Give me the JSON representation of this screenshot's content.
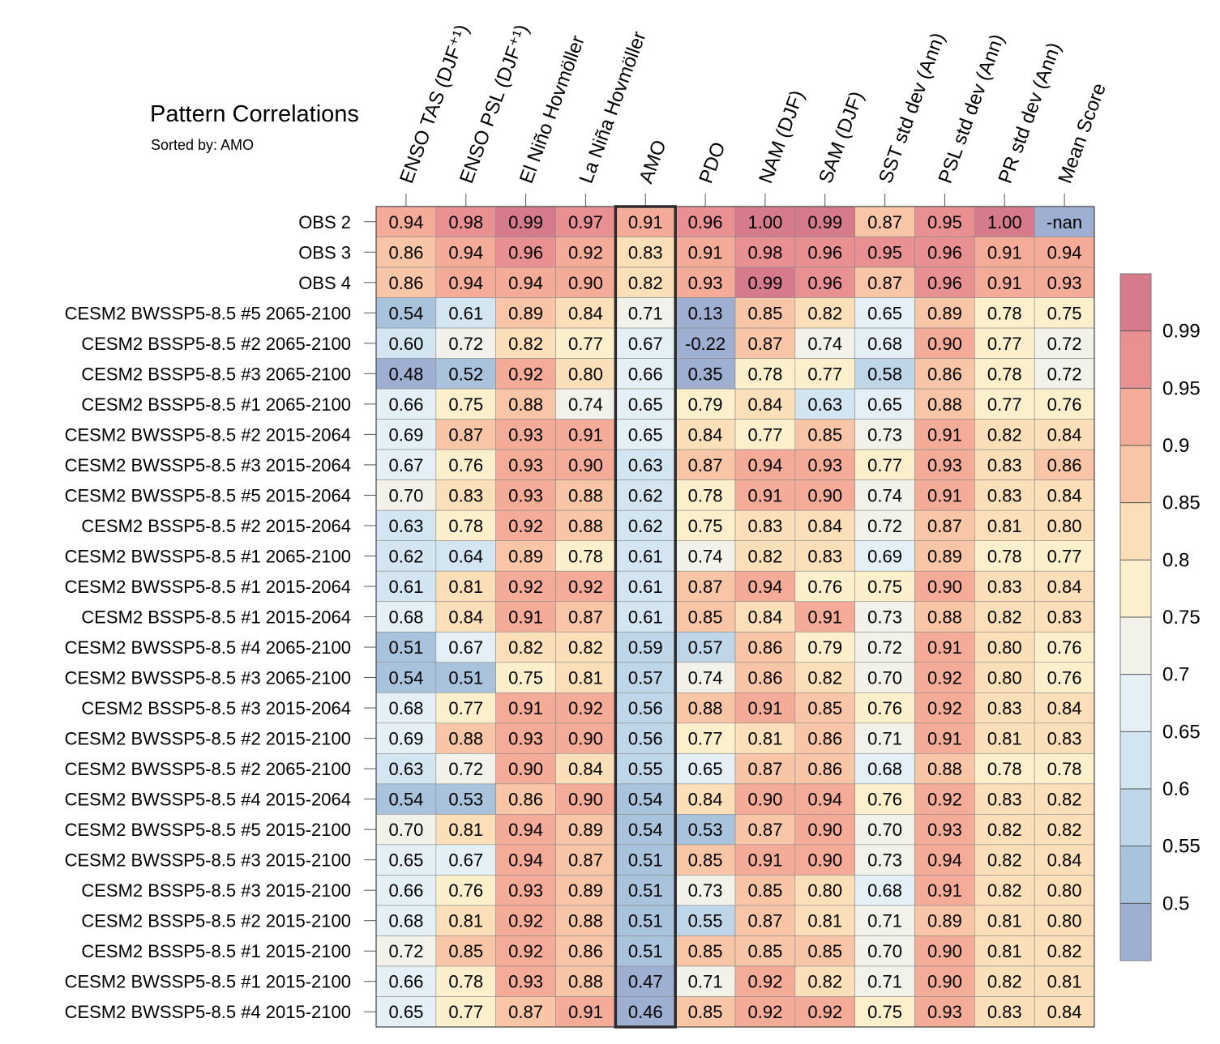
{
  "header": {
    "title": "Pattern Correlations",
    "subtitle": "Sorted by: AMO"
  },
  "chart_data": {
    "type": "heatmap",
    "title": "Pattern Correlations",
    "subtitle": "Sorted by: AMO",
    "highlighted_column": "AMO",
    "columns": [
      "ENSO TAS (DJF⁺¹)",
      "ENSO PSL (DJF⁺¹)",
      "El Niño Hovmöller",
      "La Niña Hovmöller",
      "AMO",
      "PDO",
      "NAM (DJF)",
      "SAM (DJF)",
      "SST std dev (Ann)",
      "PSL std dev (Ann)",
      "PR std dev (Ann)",
      "Mean Score"
    ],
    "rows": [
      {
        "name": "OBS 2",
        "values": [
          "0.94",
          "0.98",
          "0.99",
          "0.97",
          "0.91",
          "0.96",
          "1.00",
          "0.99",
          "0.87",
          "0.95",
          "1.00",
          "-nan"
        ]
      },
      {
        "name": "OBS 3",
        "values": [
          "0.86",
          "0.94",
          "0.96",
          "0.92",
          "0.83",
          "0.91",
          "0.98",
          "0.96",
          "0.95",
          "0.96",
          "0.91",
          "0.94"
        ]
      },
      {
        "name": "OBS 4",
        "values": [
          "0.86",
          "0.94",
          "0.94",
          "0.90",
          "0.82",
          "0.93",
          "0.99",
          "0.96",
          "0.87",
          "0.96",
          "0.91",
          "0.93"
        ]
      },
      {
        "name": "CESM2 BWSSP5-8.5 #5 2065-2100",
        "values": [
          "0.54",
          "0.61",
          "0.89",
          "0.84",
          "0.71",
          "0.13",
          "0.85",
          "0.82",
          "0.65",
          "0.89",
          "0.78",
          "0.75"
        ]
      },
      {
        "name": "CESM2 BSSP5-8.5 #2 2065-2100",
        "values": [
          "0.60",
          "0.72",
          "0.82",
          "0.77",
          "0.67",
          "-0.22",
          "0.87",
          "0.74",
          "0.68",
          "0.90",
          "0.77",
          "0.72"
        ]
      },
      {
        "name": "CESM2 BSSP5-8.5 #3 2065-2100",
        "values": [
          "0.48",
          "0.52",
          "0.92",
          "0.80",
          "0.66",
          "0.35",
          "0.78",
          "0.77",
          "0.58",
          "0.86",
          "0.78",
          "0.72"
        ]
      },
      {
        "name": "CESM2 BSSP5-8.5 #1 2065-2100",
        "values": [
          "0.66",
          "0.75",
          "0.88",
          "0.74",
          "0.65",
          "0.79",
          "0.84",
          "0.63",
          "0.65",
          "0.88",
          "0.77",
          "0.76"
        ]
      },
      {
        "name": "CESM2 BWSSP5-8.5 #2 2015-2064",
        "values": [
          "0.69",
          "0.87",
          "0.93",
          "0.91",
          "0.65",
          "0.84",
          "0.77",
          "0.85",
          "0.73",
          "0.91",
          "0.82",
          "0.84"
        ]
      },
      {
        "name": "CESM2 BWSSP5-8.5 #3 2015-2064",
        "values": [
          "0.67",
          "0.76",
          "0.93",
          "0.90",
          "0.63",
          "0.87",
          "0.94",
          "0.93",
          "0.77",
          "0.93",
          "0.83",
          "0.86"
        ]
      },
      {
        "name": "CESM2 BWSSP5-8.5 #5 2015-2064",
        "values": [
          "0.70",
          "0.83",
          "0.93",
          "0.88",
          "0.62",
          "0.78",
          "0.91",
          "0.90",
          "0.74",
          "0.91",
          "0.83",
          "0.84"
        ]
      },
      {
        "name": "CESM2 BSSP5-8.5 #2 2015-2064",
        "values": [
          "0.63",
          "0.78",
          "0.92",
          "0.88",
          "0.62",
          "0.75",
          "0.83",
          "0.84",
          "0.72",
          "0.87",
          "0.81",
          "0.80"
        ]
      },
      {
        "name": "CESM2 BWSSP5-8.5 #1 2065-2100",
        "values": [
          "0.62",
          "0.64",
          "0.89",
          "0.78",
          "0.61",
          "0.74",
          "0.82",
          "0.83",
          "0.69",
          "0.89",
          "0.78",
          "0.77"
        ]
      },
      {
        "name": "CESM2 BWSSP5-8.5 #1 2015-2064",
        "values": [
          "0.61",
          "0.81",
          "0.92",
          "0.92",
          "0.61",
          "0.87",
          "0.94",
          "0.76",
          "0.75",
          "0.90",
          "0.83",
          "0.84"
        ]
      },
      {
        "name": "CESM2 BSSP5-8.5 #1 2015-2064",
        "values": [
          "0.68",
          "0.84",
          "0.91",
          "0.87",
          "0.61",
          "0.85",
          "0.84",
          "0.91",
          "0.73",
          "0.88",
          "0.82",
          "0.83"
        ]
      },
      {
        "name": "CESM2 BWSSP5-8.5 #4 2065-2100",
        "values": [
          "0.51",
          "0.67",
          "0.82",
          "0.82",
          "0.59",
          "0.57",
          "0.86",
          "0.79",
          "0.72",
          "0.91",
          "0.80",
          "0.76"
        ]
      },
      {
        "name": "CESM2 BWSSP5-8.5 #3 2065-2100",
        "values": [
          "0.54",
          "0.51",
          "0.75",
          "0.81",
          "0.57",
          "0.74",
          "0.86",
          "0.82",
          "0.70",
          "0.92",
          "0.80",
          "0.76"
        ]
      },
      {
        "name": "CESM2 BSSP5-8.5 #3 2015-2064",
        "values": [
          "0.68",
          "0.77",
          "0.91",
          "0.92",
          "0.56",
          "0.88",
          "0.91",
          "0.85",
          "0.76",
          "0.92",
          "0.83",
          "0.84"
        ]
      },
      {
        "name": "CESM2 BWSSP5-8.5 #2 2015-2100",
        "values": [
          "0.69",
          "0.88",
          "0.93",
          "0.90",
          "0.56",
          "0.77",
          "0.81",
          "0.86",
          "0.71",
          "0.91",
          "0.81",
          "0.83"
        ]
      },
      {
        "name": "CESM2 BWSSP5-8.5 #2 2065-2100",
        "values": [
          "0.63",
          "0.72",
          "0.90",
          "0.84",
          "0.55",
          "0.65",
          "0.87",
          "0.86",
          "0.68",
          "0.88",
          "0.78",
          "0.78"
        ]
      },
      {
        "name": "CESM2 BWSSP5-8.5 #4 2015-2064",
        "values": [
          "0.54",
          "0.53",
          "0.86",
          "0.90",
          "0.54",
          "0.84",
          "0.90",
          "0.94",
          "0.76",
          "0.92",
          "0.83",
          "0.82"
        ]
      },
      {
        "name": "CESM2 BWSSP5-8.5 #5 2015-2100",
        "values": [
          "0.70",
          "0.81",
          "0.94",
          "0.89",
          "0.54",
          "0.53",
          "0.87",
          "0.90",
          "0.70",
          "0.93",
          "0.82",
          "0.82"
        ]
      },
      {
        "name": "CESM2 BWSSP5-8.5 #3 2015-2100",
        "values": [
          "0.65",
          "0.67",
          "0.94",
          "0.87",
          "0.51",
          "0.85",
          "0.91",
          "0.90",
          "0.73",
          "0.94",
          "0.82",
          "0.84"
        ]
      },
      {
        "name": "CESM2 BSSP5-8.5 #3 2015-2100",
        "values": [
          "0.66",
          "0.76",
          "0.93",
          "0.89",
          "0.51",
          "0.73",
          "0.85",
          "0.80",
          "0.68",
          "0.91",
          "0.82",
          "0.80"
        ]
      },
      {
        "name": "CESM2 BSSP5-8.5 #2 2015-2100",
        "values": [
          "0.68",
          "0.81",
          "0.92",
          "0.88",
          "0.51",
          "0.55",
          "0.87",
          "0.81",
          "0.71",
          "0.89",
          "0.81",
          "0.80"
        ]
      },
      {
        "name": "CESM2 BSSP5-8.5 #1 2015-2100",
        "values": [
          "0.72",
          "0.85",
          "0.92",
          "0.86",
          "0.51",
          "0.85",
          "0.85",
          "0.85",
          "0.70",
          "0.90",
          "0.81",
          "0.82"
        ]
      },
      {
        "name": "CESM2 BWSSP5-8.5 #1 2015-2100",
        "values": [
          "0.66",
          "0.78",
          "0.93",
          "0.88",
          "0.47",
          "0.71",
          "0.92",
          "0.82",
          "0.71",
          "0.90",
          "0.82",
          "0.81"
        ]
      },
      {
        "name": "CESM2 BWSSP5-8.5 #4 2015-2100",
        "values": [
          "0.65",
          "0.77",
          "0.87",
          "0.91",
          "0.46",
          "0.85",
          "0.92",
          "0.92",
          "0.75",
          "0.93",
          "0.83",
          "0.84"
        ]
      }
    ],
    "colorbar": {
      "levels": [
        0.5,
        0.55,
        0.6,
        0.65,
        0.7,
        0.75,
        0.8,
        0.85,
        0.9,
        0.95,
        0.99
      ],
      "tick_labels": [
        "0.5",
        "0.55",
        "0.6",
        "0.65",
        "0.7",
        "0.75",
        "0.8",
        "0.85",
        "0.9",
        "0.95",
        "0.99"
      ],
      "colors": [
        "#9eafd2",
        "#aac3dd",
        "#bed6e7",
        "#d2e5f1",
        "#e5f0f6",
        "#f2f2ea",
        "#fbefcc",
        "#fbdfb8",
        "#f8c6a6",
        "#f4ac98",
        "#e99093",
        "#d57b8c"
      ],
      "nan_color": "#9eafd2"
    }
  }
}
